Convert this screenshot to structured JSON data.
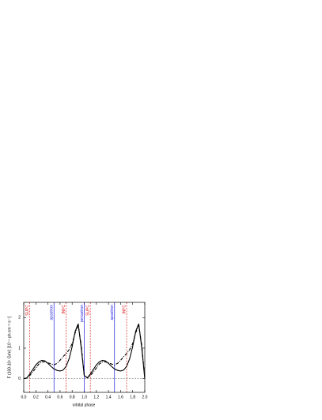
{
  "chart_data": {
    "type": "line",
    "ylabel": "F (100-10⁵ GeV) [10⁻⁹ ph cm⁻² s⁻¹]",
    "xlabel": "orbital phase",
    "xlim": [
      0,
      2.0
    ],
    "ylim": [
      -0.45,
      2.5
    ],
    "xticks": [
      {
        "value": 0,
        "label": "0.0"
      },
      {
        "value": 0.2,
        "label": "0.2"
      },
      {
        "value": 0.4,
        "label": "0.4"
      },
      {
        "value": 0.6,
        "label": "0.6"
      },
      {
        "value": 0.8,
        "label": "0.8"
      },
      {
        "value": 1.0,
        "label": "1.0"
      },
      {
        "value": 1.2,
        "label": "1.2"
      },
      {
        "value": 1.4,
        "label": "1.4"
      },
      {
        "value": 1.6,
        "label": "1.6"
      },
      {
        "value": 1.8,
        "label": "1.8"
      },
      {
        "value": 2.0,
        "label": "2.0"
      }
    ],
    "yticks": [
      0,
      1,
      2
    ],
    "hline": 0,
    "vlines": [
      {
        "x": 0.1,
        "label": "SUPC",
        "color": "#e02020",
        "style": "dashed"
      },
      {
        "x": 0.5,
        "label": "apastron",
        "color": "#2020e0",
        "style": "solid"
      },
      {
        "x": 0.7,
        "label": "INFC",
        "color": "#e02020",
        "style": "dashed"
      },
      {
        "x": 1.0,
        "label": "periastron",
        "color": "#2020e0",
        "style": "solid"
      },
      {
        "x": 1.1,
        "label": "SUPC",
        "color": "#e02020",
        "style": "dashed"
      },
      {
        "x": 1.5,
        "label": "apastron",
        "color": "#2020e0",
        "style": "solid"
      },
      {
        "x": 1.7,
        "label": "INFC",
        "color": "#e02020",
        "style": "dashed"
      }
    ],
    "x": [
      0,
      0.05,
      0.1,
      0.15,
      0.2,
      0.25,
      0.3,
      0.35,
      0.4,
      0.45,
      0.5,
      0.55,
      0.6,
      0.65,
      0.7,
      0.75,
      0.8,
      0.85,
      0.9,
      0.95,
      1.0,
      1.05,
      1.1,
      1.15,
      1.2,
      1.25,
      1.3,
      1.35,
      1.4,
      1.45,
      1.5,
      1.55,
      1.6,
      1.65,
      1.7,
      1.75,
      1.8,
      1.85,
      1.9,
      1.95,
      2.0
    ],
    "series": [
      {
        "color": "#000000",
        "style": "solid",
        "values": [
          0,
          0.02,
          0.15,
          0.3,
          0.45,
          0.55,
          0.6,
          0.58,
          0.5,
          0.4,
          0.32,
          0.27,
          0.25,
          0.28,
          0.4,
          0.65,
          1.05,
          1.55,
          1.8,
          1.0,
          0.1,
          0.03,
          0.15,
          0.3,
          0.45,
          0.55,
          0.6,
          0.58,
          0.5,
          0.4,
          0.32,
          0.27,
          0.25,
          0.28,
          0.4,
          0.65,
          1.05,
          1.55,
          1.8,
          1.0,
          0
        ]
      },
      {
        "color": "#000000",
        "style": "dashdot",
        "values": [
          0,
          0.02,
          0.1,
          0.22,
          0.35,
          0.48,
          0.55,
          0.55,
          0.52,
          0.48,
          0.45,
          0.5,
          0.6,
          0.72,
          0.82,
          0.95,
          1.15,
          1.5,
          1.75,
          1.1,
          0.1,
          0.02,
          0.1,
          0.22,
          0.35,
          0.48,
          0.55,
          0.55,
          0.52,
          0.48,
          0.45,
          0.5,
          0.6,
          0.72,
          0.82,
          0.95,
          1.15,
          1.5,
          1.75,
          1.1,
          0
        ]
      }
    ]
  }
}
